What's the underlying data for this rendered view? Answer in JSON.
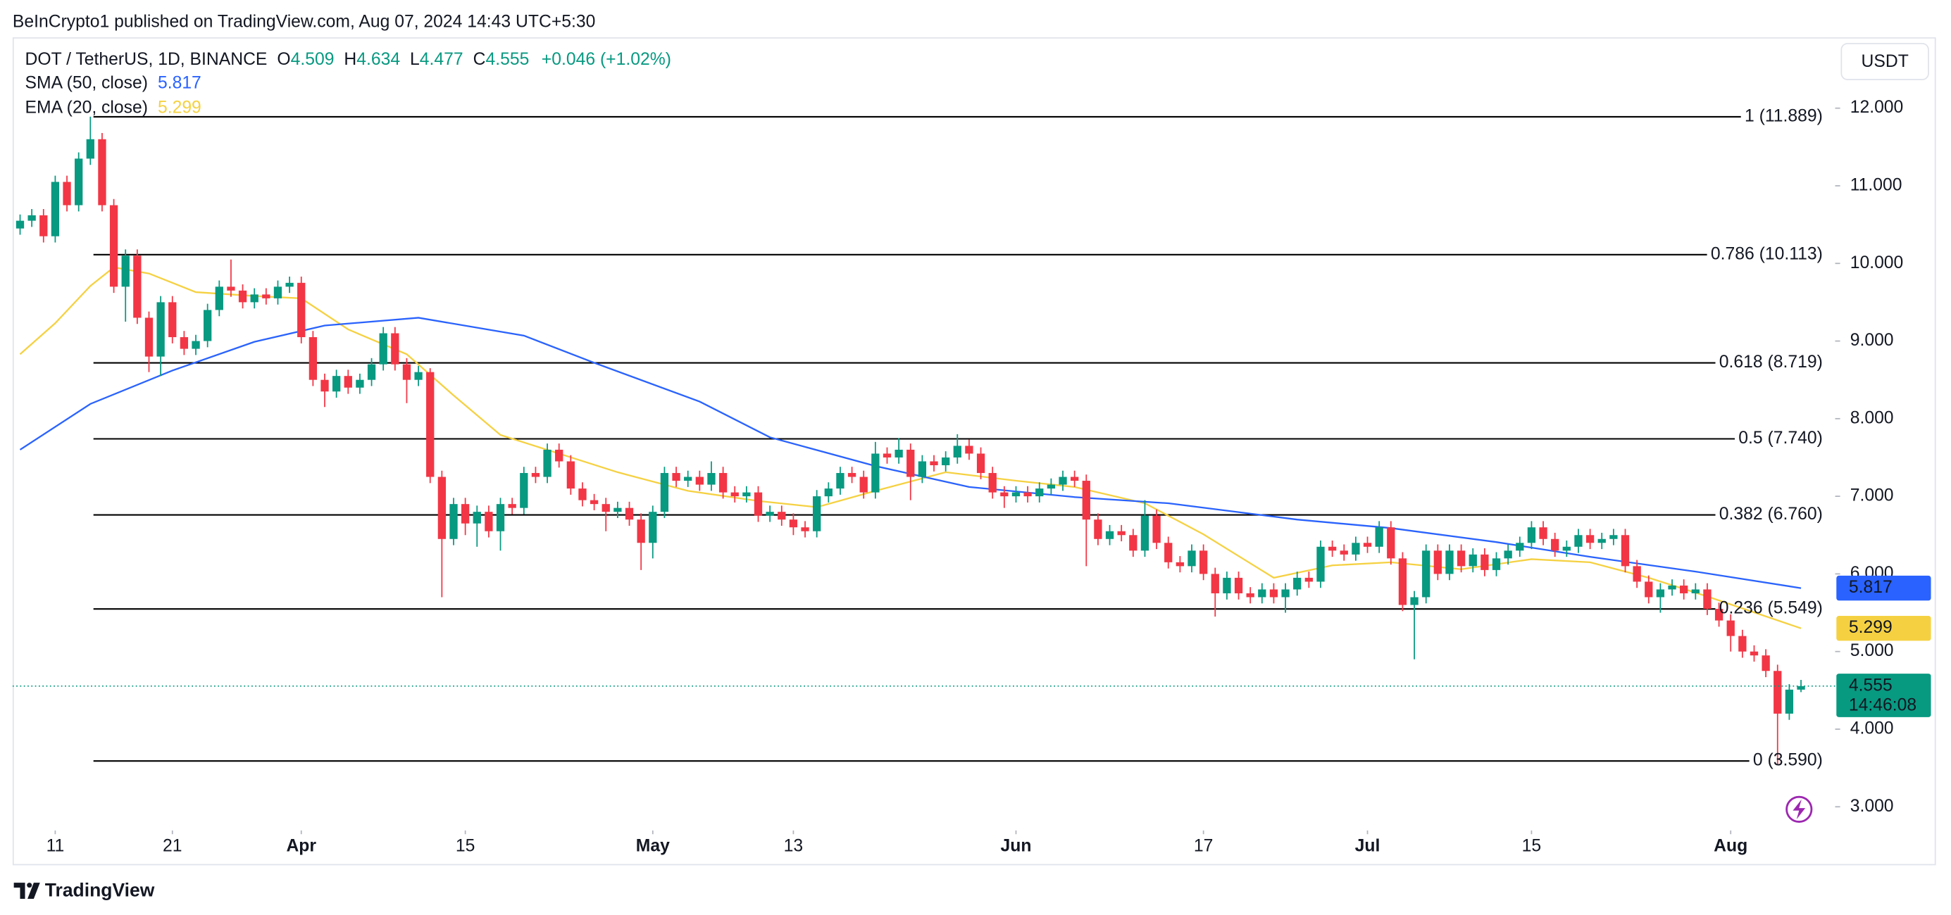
{
  "published": "BeInCrypto1 published on TradingView.com, Aug 07, 2024 14:43 UTC+5:30",
  "brand": "TradingView",
  "chart_data": {
    "type": "candlestick",
    "symbol": "DOT / TetherUS, 1D, BINANCE",
    "currency": "USDT",
    "ohlc_labels": [
      "O",
      "H",
      "L",
      "C"
    ],
    "change": "+0.046 (+1.02%)",
    "countdown": "14:46:08",
    "up_color": "#089981",
    "down_color": "#f23645",
    "x": [
      "2024-03-08",
      "2024-03-09",
      "2024-03-10",
      "2024-03-11",
      "2024-03-12",
      "2024-03-13",
      "2024-03-14",
      "2024-03-15",
      "2024-03-16",
      "2024-03-17",
      "2024-03-18",
      "2024-03-19",
      "2024-03-20",
      "2024-03-21",
      "2024-03-22",
      "2024-03-23",
      "2024-03-24",
      "2024-03-25",
      "2024-03-26",
      "2024-03-27",
      "2024-03-28",
      "2024-03-29",
      "2024-03-30",
      "2024-03-31",
      "2024-04-01",
      "2024-04-02",
      "2024-04-03",
      "2024-04-04",
      "2024-04-05",
      "2024-04-06",
      "2024-04-07",
      "2024-04-08",
      "2024-04-09",
      "2024-04-10",
      "2024-04-11",
      "2024-04-12",
      "2024-04-13",
      "2024-04-14",
      "2024-04-15",
      "2024-04-16",
      "2024-04-17",
      "2024-04-18",
      "2024-04-19",
      "2024-04-20",
      "2024-04-21",
      "2024-04-22",
      "2024-04-23",
      "2024-04-24",
      "2024-04-25",
      "2024-04-26",
      "2024-04-27",
      "2024-04-28",
      "2024-04-29",
      "2024-04-30",
      "2024-05-01",
      "2024-05-02",
      "2024-05-03",
      "2024-05-04",
      "2024-05-05",
      "2024-05-06",
      "2024-05-07",
      "2024-05-08",
      "2024-05-09",
      "2024-05-10",
      "2024-05-11",
      "2024-05-12",
      "2024-05-13",
      "2024-05-14",
      "2024-05-15",
      "2024-05-16",
      "2024-05-17",
      "2024-05-18",
      "2024-05-19",
      "2024-05-20",
      "2024-05-21",
      "2024-05-22",
      "2024-05-23",
      "2024-05-24",
      "2024-05-25",
      "2024-05-26",
      "2024-05-27",
      "2024-05-28",
      "2024-05-29",
      "2024-05-30",
      "2024-05-31",
      "2024-06-01",
      "2024-06-02",
      "2024-06-03",
      "2024-06-04",
      "2024-06-05",
      "2024-06-06",
      "2024-06-07",
      "2024-06-08",
      "2024-06-09",
      "2024-06-10",
      "2024-06-11",
      "2024-06-12",
      "2024-06-13",
      "2024-06-14",
      "2024-06-15",
      "2024-06-16",
      "2024-06-17",
      "2024-06-18",
      "2024-06-19",
      "2024-06-20",
      "2024-06-21",
      "2024-06-22",
      "2024-06-23",
      "2024-06-24",
      "2024-06-25",
      "2024-06-26",
      "2024-06-27",
      "2024-06-28",
      "2024-06-29",
      "2024-06-30",
      "2024-07-01",
      "2024-07-02",
      "2024-07-03",
      "2024-07-04",
      "2024-07-05",
      "2024-07-06",
      "2024-07-07",
      "2024-07-08",
      "2024-07-09",
      "2024-07-10",
      "2024-07-11",
      "2024-07-12",
      "2024-07-13",
      "2024-07-14",
      "2024-07-15",
      "2024-07-16",
      "2024-07-17",
      "2024-07-18",
      "2024-07-19",
      "2024-07-20",
      "2024-07-21",
      "2024-07-22",
      "2024-07-23",
      "2024-07-24",
      "2024-07-25",
      "2024-07-26",
      "2024-07-27",
      "2024-07-28",
      "2024-07-29",
      "2024-07-30",
      "2024-07-31",
      "2024-08-01",
      "2024-08-02",
      "2024-08-03",
      "2024-08-04",
      "2024-08-05",
      "2024-08-06",
      "2024-08-07"
    ],
    "open": [
      10.45,
      10.55,
      10.62,
      10.35,
      11.05,
      10.75,
      11.35,
      11.6,
      10.75,
      9.7,
      10.1,
      9.3,
      8.8,
      9.5,
      9.05,
      8.9,
      9.0,
      9.4,
      9.7,
      9.65,
      9.5,
      9.6,
      9.55,
      9.7,
      9.75,
      9.05,
      8.5,
      8.35,
      8.55,
      8.4,
      8.5,
      8.7,
      9.1,
      8.7,
      8.5,
      8.6,
      7.25,
      6.45,
      6.9,
      6.65,
      6.8,
      6.55,
      6.9,
      6.85,
      7.3,
      7.25,
      7.6,
      7.45,
      7.1,
      6.95,
      6.9,
      6.8,
      6.85,
      6.7,
      6.4,
      6.8,
      7.3,
      7.2,
      7.25,
      7.15,
      7.3,
      7.05,
      7.0,
      7.05,
      6.75,
      6.8,
      6.7,
      6.6,
      6.55,
      7.0,
      7.1,
      7.3,
      7.25,
      7.05,
      7.55,
      7.5,
      7.6,
      7.25,
      7.45,
      7.4,
      7.5,
      7.65,
      7.55,
      7.3,
      7.05,
      7.0,
      7.05,
      7.0,
      7.1,
      7.15,
      7.25,
      7.2,
      6.7,
      6.45,
      6.55,
      6.5,
      6.3,
      6.75,
      6.4,
      6.15,
      6.1,
      6.3,
      6.0,
      5.75,
      5.95,
      5.75,
      5.7,
      5.8,
      5.7,
      5.8,
      5.95,
      5.9,
      6.35,
      6.3,
      6.25,
      6.4,
      6.35,
      6.6,
      6.2,
      5.6,
      5.7,
      6.3,
      6.0,
      6.3,
      6.1,
      6.25,
      6.05,
      6.2,
      6.3,
      6.4,
      6.6,
      6.45,
      6.3,
      6.35,
      6.5,
      6.4,
      6.45,
      6.5,
      6.1,
      5.9,
      5.7,
      5.8,
      5.85,
      5.75,
      5.8,
      5.55,
      5.4,
      5.2,
      5.0,
      4.95,
      4.75,
      4.2,
      4.509
    ],
    "high": [
      10.63,
      10.7,
      10.7,
      11.13,
      11.13,
      11.43,
      11.89,
      11.68,
      10.83,
      10.18,
      10.18,
      9.38,
      9.58,
      9.58,
      9.13,
      9.08,
      9.48,
      9.78,
      10.05,
      9.73,
      9.68,
      9.68,
      9.78,
      9.83,
      9.83,
      9.13,
      8.58,
      8.63,
      8.63,
      8.58,
      8.78,
      9.18,
      9.18,
      8.78,
      8.68,
      8.65,
      7.33,
      6.98,
      6.98,
      6.88,
      6.88,
      6.98,
      6.98,
      7.38,
      7.38,
      7.68,
      7.68,
      7.53,
      7.18,
      7.03,
      6.98,
      6.93,
      6.93,
      6.78,
      6.88,
      7.38,
      7.38,
      7.33,
      7.33,
      7.45,
      7.38,
      7.13,
      7.13,
      7.13,
      6.88,
      6.88,
      6.78,
      6.68,
      7.08,
      7.18,
      7.38,
      7.38,
      7.33,
      7.7,
      7.63,
      7.75,
      7.68,
      7.53,
      7.53,
      7.58,
      7.8,
      7.73,
      7.63,
      7.38,
      7.13,
      7.13,
      7.13,
      7.18,
      7.23,
      7.33,
      7.33,
      7.28,
      6.78,
      6.63,
      6.63,
      6.58,
      6.95,
      6.83,
      6.48,
      6.23,
      6.38,
      6.38,
      6.08,
      6.03,
      6.03,
      5.83,
      5.88,
      5.88,
      5.88,
      6.03,
      6.03,
      6.43,
      6.43,
      6.38,
      6.48,
      6.48,
      6.68,
      6.68,
      6.28,
      5.78,
      6.38,
      6.38,
      6.38,
      6.38,
      6.33,
      6.33,
      6.28,
      6.38,
      6.48,
      6.68,
      6.68,
      6.53,
      6.43,
      6.58,
      6.58,
      6.53,
      6.58,
      6.58,
      6.18,
      5.98,
      5.88,
      5.93,
      5.93,
      5.88,
      5.88,
      5.63,
      5.48,
      5.28,
      5.08,
      5.03,
      4.83,
      4.58,
      4.634
    ],
    "low": [
      10.37,
      10.47,
      10.27,
      10.27,
      10.67,
      10.67,
      11.27,
      10.67,
      9.62,
      9.25,
      9.22,
      8.6,
      8.55,
      8.97,
      8.82,
      8.82,
      8.92,
      9.32,
      9.57,
      9.42,
      9.42,
      9.47,
      9.47,
      9.62,
      8.97,
      8.42,
      8.15,
      8.27,
      8.32,
      8.32,
      8.42,
      8.62,
      8.62,
      8.2,
      8.42,
      7.17,
      5.7,
      6.37,
      6.5,
      6.35,
      6.47,
      6.3,
      6.77,
      6.77,
      7.17,
      7.17,
      7.37,
      7.02,
      6.87,
      6.82,
      6.55,
      6.72,
      6.62,
      6.05,
      6.2,
      6.72,
      7.12,
      7.12,
      7.07,
      7.07,
      6.97,
      6.92,
      6.92,
      6.67,
      6.67,
      6.62,
      6.5,
      6.47,
      6.47,
      6.92,
      7.02,
      7.17,
      6.97,
      6.97,
      7.42,
      7.42,
      6.95,
      7.17,
      7.32,
      7.32,
      7.42,
      7.47,
      7.22,
      6.97,
      6.85,
      6.92,
      6.92,
      6.92,
      7.02,
      7.07,
      7.12,
      6.1,
      6.37,
      6.37,
      6.42,
      6.22,
      6.22,
      6.32,
      6.07,
      6.02,
      6.02,
      5.92,
      5.45,
      5.67,
      5.67,
      5.62,
      5.62,
      5.62,
      5.5,
      5.72,
      5.82,
      5.82,
      6.22,
      6.17,
      6.17,
      6.27,
      6.27,
      6.12,
      5.52,
      4.9,
      5.62,
      5.92,
      5.92,
      6.02,
      6.02,
      5.97,
      5.97,
      6.12,
      6.22,
      6.32,
      6.37,
      6.22,
      6.22,
      6.27,
      6.32,
      6.32,
      6.37,
      6.02,
      5.82,
      5.62,
      5.5,
      5.72,
      5.67,
      5.67,
      5.47,
      5.32,
      5.0,
      4.92,
      4.87,
      4.67,
      3.55,
      4.12,
      4.477
    ],
    "close": [
      10.55,
      10.62,
      10.35,
      11.05,
      10.75,
      11.35,
      11.6,
      10.75,
      9.7,
      10.1,
      9.3,
      8.8,
      9.5,
      9.05,
      8.9,
      9.0,
      9.4,
      9.7,
      9.65,
      9.5,
      9.6,
      9.55,
      9.7,
      9.75,
      9.05,
      8.5,
      8.35,
      8.55,
      8.4,
      8.5,
      8.7,
      9.1,
      8.7,
      8.5,
      8.6,
      7.25,
      6.45,
      6.9,
      6.65,
      6.8,
      6.55,
      6.9,
      6.85,
      7.3,
      7.25,
      7.6,
      7.45,
      7.1,
      6.95,
      6.9,
      6.8,
      6.85,
      6.7,
      6.4,
      6.8,
      7.3,
      7.2,
      7.25,
      7.15,
      7.3,
      7.05,
      7.0,
      7.05,
      6.75,
      6.8,
      6.7,
      6.6,
      6.55,
      7.0,
      7.1,
      7.3,
      7.25,
      7.05,
      7.55,
      7.5,
      7.6,
      7.25,
      7.45,
      7.4,
      7.5,
      7.65,
      7.55,
      7.3,
      7.05,
      7.0,
      7.05,
      7.0,
      7.1,
      7.15,
      7.25,
      7.2,
      6.7,
      6.45,
      6.55,
      6.5,
      6.3,
      6.75,
      6.4,
      6.15,
      6.1,
      6.3,
      6.0,
      5.75,
      5.95,
      5.75,
      5.7,
      5.8,
      5.7,
      5.8,
      5.95,
      5.9,
      6.35,
      6.3,
      6.25,
      6.4,
      6.35,
      6.6,
      6.2,
      5.6,
      5.7,
      6.3,
      6.0,
      6.3,
      6.1,
      6.25,
      6.05,
      6.2,
      6.3,
      6.4,
      6.6,
      6.45,
      6.3,
      6.35,
      6.5,
      6.4,
      6.45,
      6.5,
      6.1,
      5.9,
      5.7,
      5.8,
      5.85,
      5.75,
      5.8,
      5.55,
      5.4,
      5.2,
      5.0,
      4.95,
      4.75,
      4.2,
      4.509,
      4.555
    ],
    "xlim": [
      "2024-03-07",
      "2024-08-10"
    ],
    "xticks": [
      {
        "value": "2024-03-11",
        "label": "11"
      },
      {
        "value": "2024-03-21",
        "label": "21"
      },
      {
        "value": "2024-04-01",
        "label": "Apr"
      },
      {
        "value": "2024-04-15",
        "label": "15"
      },
      {
        "value": "2024-05-01",
        "label": "May"
      },
      {
        "value": "2024-05-13",
        "label": "13"
      },
      {
        "value": "2024-06-01",
        "label": "Jun"
      },
      {
        "value": "2024-06-17",
        "label": "17"
      },
      {
        "value": "2024-07-01",
        "label": "Jul"
      },
      {
        "value": "2024-07-15",
        "label": "15"
      },
      {
        "value": "2024-08-01",
        "label": "Aug"
      }
    ],
    "ylim": [
      2.695,
      12.913
    ],
    "yticks": [
      {
        "value": 3,
        "label": "3.000"
      },
      {
        "value": 4,
        "label": "4.000"
      },
      {
        "value": 5,
        "label": "5.000"
      },
      {
        "value": 6,
        "label": "6.000"
      },
      {
        "value": 7,
        "label": "7.000"
      },
      {
        "value": 8,
        "label": "8.000"
      },
      {
        "value": 9,
        "label": "9.000"
      },
      {
        "value": 10,
        "label": "10.000"
      },
      {
        "value": 11,
        "label": "11.000"
      },
      {
        "value": 12,
        "label": "12.000"
      }
    ],
    "sma": {
      "name": "SMA (50, close)",
      "color": "#2962ff",
      "x": [
        "2024-03-08",
        "2024-03-14",
        "2024-03-21",
        "2024-03-28",
        "2024-04-03",
        "2024-04-11",
        "2024-04-20",
        "2024-04-26",
        "2024-05-05",
        "2024-05-11",
        "2024-05-20",
        "2024-05-28",
        "2024-06-06",
        "2024-06-14",
        "2024-06-25",
        "2024-07-03",
        "2024-07-12",
        "2024-07-20",
        "2024-07-29",
        "2024-08-07"
      ],
      "values": [
        7.6,
        8.19,
        8.62,
        8.99,
        9.2,
        9.3,
        9.07,
        8.72,
        8.22,
        7.76,
        7.39,
        7.12,
        6.99,
        6.91,
        6.7,
        6.59,
        6.41,
        6.22,
        6.03,
        5.817
      ]
    },
    "ema": {
      "name": "EMA (20, close)",
      "color": "#f5d142",
      "x": [
        "2024-03-08",
        "2024-03-11",
        "2024-03-14",
        "2024-03-16",
        "2024-03-19",
        "2024-03-23",
        "2024-03-28",
        "2024-04-01",
        "2024-04-05",
        "2024-04-10",
        "2024-04-14",
        "2024-04-18",
        "2024-04-23",
        "2024-04-28",
        "2024-05-04",
        "2024-05-10",
        "2024-05-15",
        "2024-05-20",
        "2024-05-26",
        "2024-06-01",
        "2024-06-06",
        "2024-06-12",
        "2024-06-17",
        "2024-06-23",
        "2024-06-28",
        "2024-07-03",
        "2024-07-09",
        "2024-07-15",
        "2024-07-20",
        "2024-07-25",
        "2024-07-30",
        "2024-08-07"
      ],
      "values": [
        8.83,
        9.23,
        9.71,
        9.95,
        9.87,
        9.63,
        9.58,
        9.55,
        9.15,
        8.83,
        8.3,
        7.79,
        7.55,
        7.31,
        7.07,
        6.94,
        6.86,
        7.07,
        7.31,
        7.2,
        7.12,
        6.91,
        6.51,
        5.95,
        6.11,
        6.15,
        6.06,
        6.19,
        6.15,
        5.95,
        5.71,
        5.299
      ]
    },
    "fib": {
      "color": "#000000",
      "levels": [
        {
          "label": "1 (11.889)",
          "value": 11.889
        },
        {
          "label": "0.786 (10.113)",
          "value": 10.113
        },
        {
          "label": "0.618 (8.719)",
          "value": 8.719
        },
        {
          "label": "0.5 (7.740)",
          "value": 7.74
        },
        {
          "label": "0.382 (6.760)",
          "value": 6.76
        },
        {
          "label": "0.236 (5.549)",
          "value": 5.549
        },
        {
          "label": "0 (3.590)",
          "value": 3.59
        }
      ]
    }
  }
}
